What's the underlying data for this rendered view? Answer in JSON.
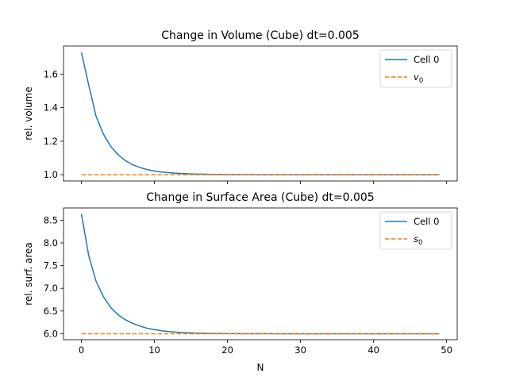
{
  "chart_data": [
    {
      "type": "line",
      "title": "Change in Volume (Cube) dt=0.005",
      "xlabel": "",
      "ylabel": "rel. volume",
      "xlim": [
        -2.45,
        51.45
      ],
      "ylim": [
        0.963,
        1.767
      ],
      "xticks": [
        0,
        10,
        20,
        30,
        40,
        50
      ],
      "xticklabels_visible": false,
      "yticks": [
        1.0,
        1.2,
        1.4,
        1.6
      ],
      "yticklabels": [
        "1.0",
        "1.2",
        "1.4",
        "1.6"
      ],
      "legend_position": "top-right",
      "grid": false,
      "series": [
        {
          "name": "Cell 0",
          "color": "#1f77b4",
          "style": "solid",
          "x": [
            0,
            1,
            2,
            3,
            4,
            5,
            6,
            7,
            8,
            9,
            10,
            11,
            12,
            13,
            14,
            15,
            16,
            17,
            18,
            19,
            20,
            21,
            22,
            23,
            24,
            25,
            26,
            27,
            28,
            29,
            30,
            31,
            32,
            33,
            34,
            35,
            36,
            37,
            38,
            39,
            40,
            41,
            42,
            43,
            44,
            45,
            46,
            47,
            48,
            49
          ],
          "y": [
            1.73,
            1.535,
            1.35,
            1.243,
            1.17,
            1.12,
            1.085,
            1.06,
            1.043,
            1.031,
            1.022,
            1.016,
            1.012,
            1.009,
            1.007,
            1.005,
            1.004,
            1.003,
            1.002,
            1.002,
            1.001,
            1.001,
            1.001,
            1.001,
            1.0,
            1.0,
            1.0,
            1.0,
            1.0,
            1.0,
            1.0,
            1.0,
            1.0,
            1.0,
            1.0,
            1.0,
            1.0,
            1.0,
            1.0,
            1.0,
            1.0,
            1.0,
            1.0,
            1.0,
            1.0,
            1.0,
            1.0,
            1.0,
            1.0,
            1.0
          ]
        },
        {
          "name": "v0",
          "legend_base": "v",
          "legend_sub": "0",
          "color": "#ff7f0e",
          "style": "dashed",
          "x": [
            0,
            49
          ],
          "y": [
            1.0,
            1.0
          ]
        }
      ]
    },
    {
      "type": "line",
      "title": "Change in Surface Area (Cube) dt=0.005",
      "xlabel": "N",
      "ylabel": "rel. surf. area",
      "xlim": [
        -2.45,
        51.45
      ],
      "ylim": [
        5.868,
        8.768
      ],
      "xticks": [
        0,
        10,
        20,
        30,
        40,
        50
      ],
      "xticklabels": [
        "0",
        "10",
        "20",
        "30",
        "40",
        "50"
      ],
      "xticklabels_visible": true,
      "yticks": [
        6.0,
        6.5,
        7.0,
        7.5,
        8.0,
        8.5
      ],
      "yticklabels": [
        "6.0",
        "6.5",
        "7.0",
        "7.5",
        "8.0",
        "8.5"
      ],
      "legend_position": "top-right",
      "grid": false,
      "series": [
        {
          "name": "Cell 0",
          "color": "#1f77b4",
          "style": "solid",
          "x": [
            0,
            1,
            2,
            3,
            4,
            5,
            6,
            7,
            8,
            9,
            10,
            11,
            12,
            13,
            14,
            15,
            16,
            17,
            18,
            19,
            20,
            21,
            22,
            23,
            24,
            25,
            26,
            27,
            28,
            29,
            30,
            31,
            32,
            33,
            34,
            35,
            36,
            37,
            38,
            39,
            40,
            41,
            42,
            43,
            44,
            45,
            46,
            47,
            48,
            49
          ],
          "y": [
            8.64,
            7.72,
            7.16,
            6.82,
            6.58,
            6.42,
            6.31,
            6.23,
            6.17,
            6.12,
            6.09,
            6.065,
            6.047,
            6.034,
            6.025,
            6.018,
            6.013,
            6.01,
            6.007,
            6.005,
            6.004,
            6.003,
            6.002,
            6.002,
            6.001,
            6.001,
            6.001,
            6.0,
            6.0,
            6.0,
            6.0,
            6.0,
            6.0,
            6.0,
            6.0,
            6.0,
            6.0,
            6.0,
            6.0,
            6.0,
            6.0,
            6.0,
            6.0,
            6.0,
            6.0,
            6.0,
            6.0,
            6.0,
            6.0,
            6.0
          ]
        },
        {
          "name": "s0",
          "legend_base": "s",
          "legend_sub": "0",
          "color": "#ff7f0e",
          "style": "dashed",
          "x": [
            0,
            49
          ],
          "y": [
            6.0,
            6.0
          ]
        }
      ]
    }
  ]
}
